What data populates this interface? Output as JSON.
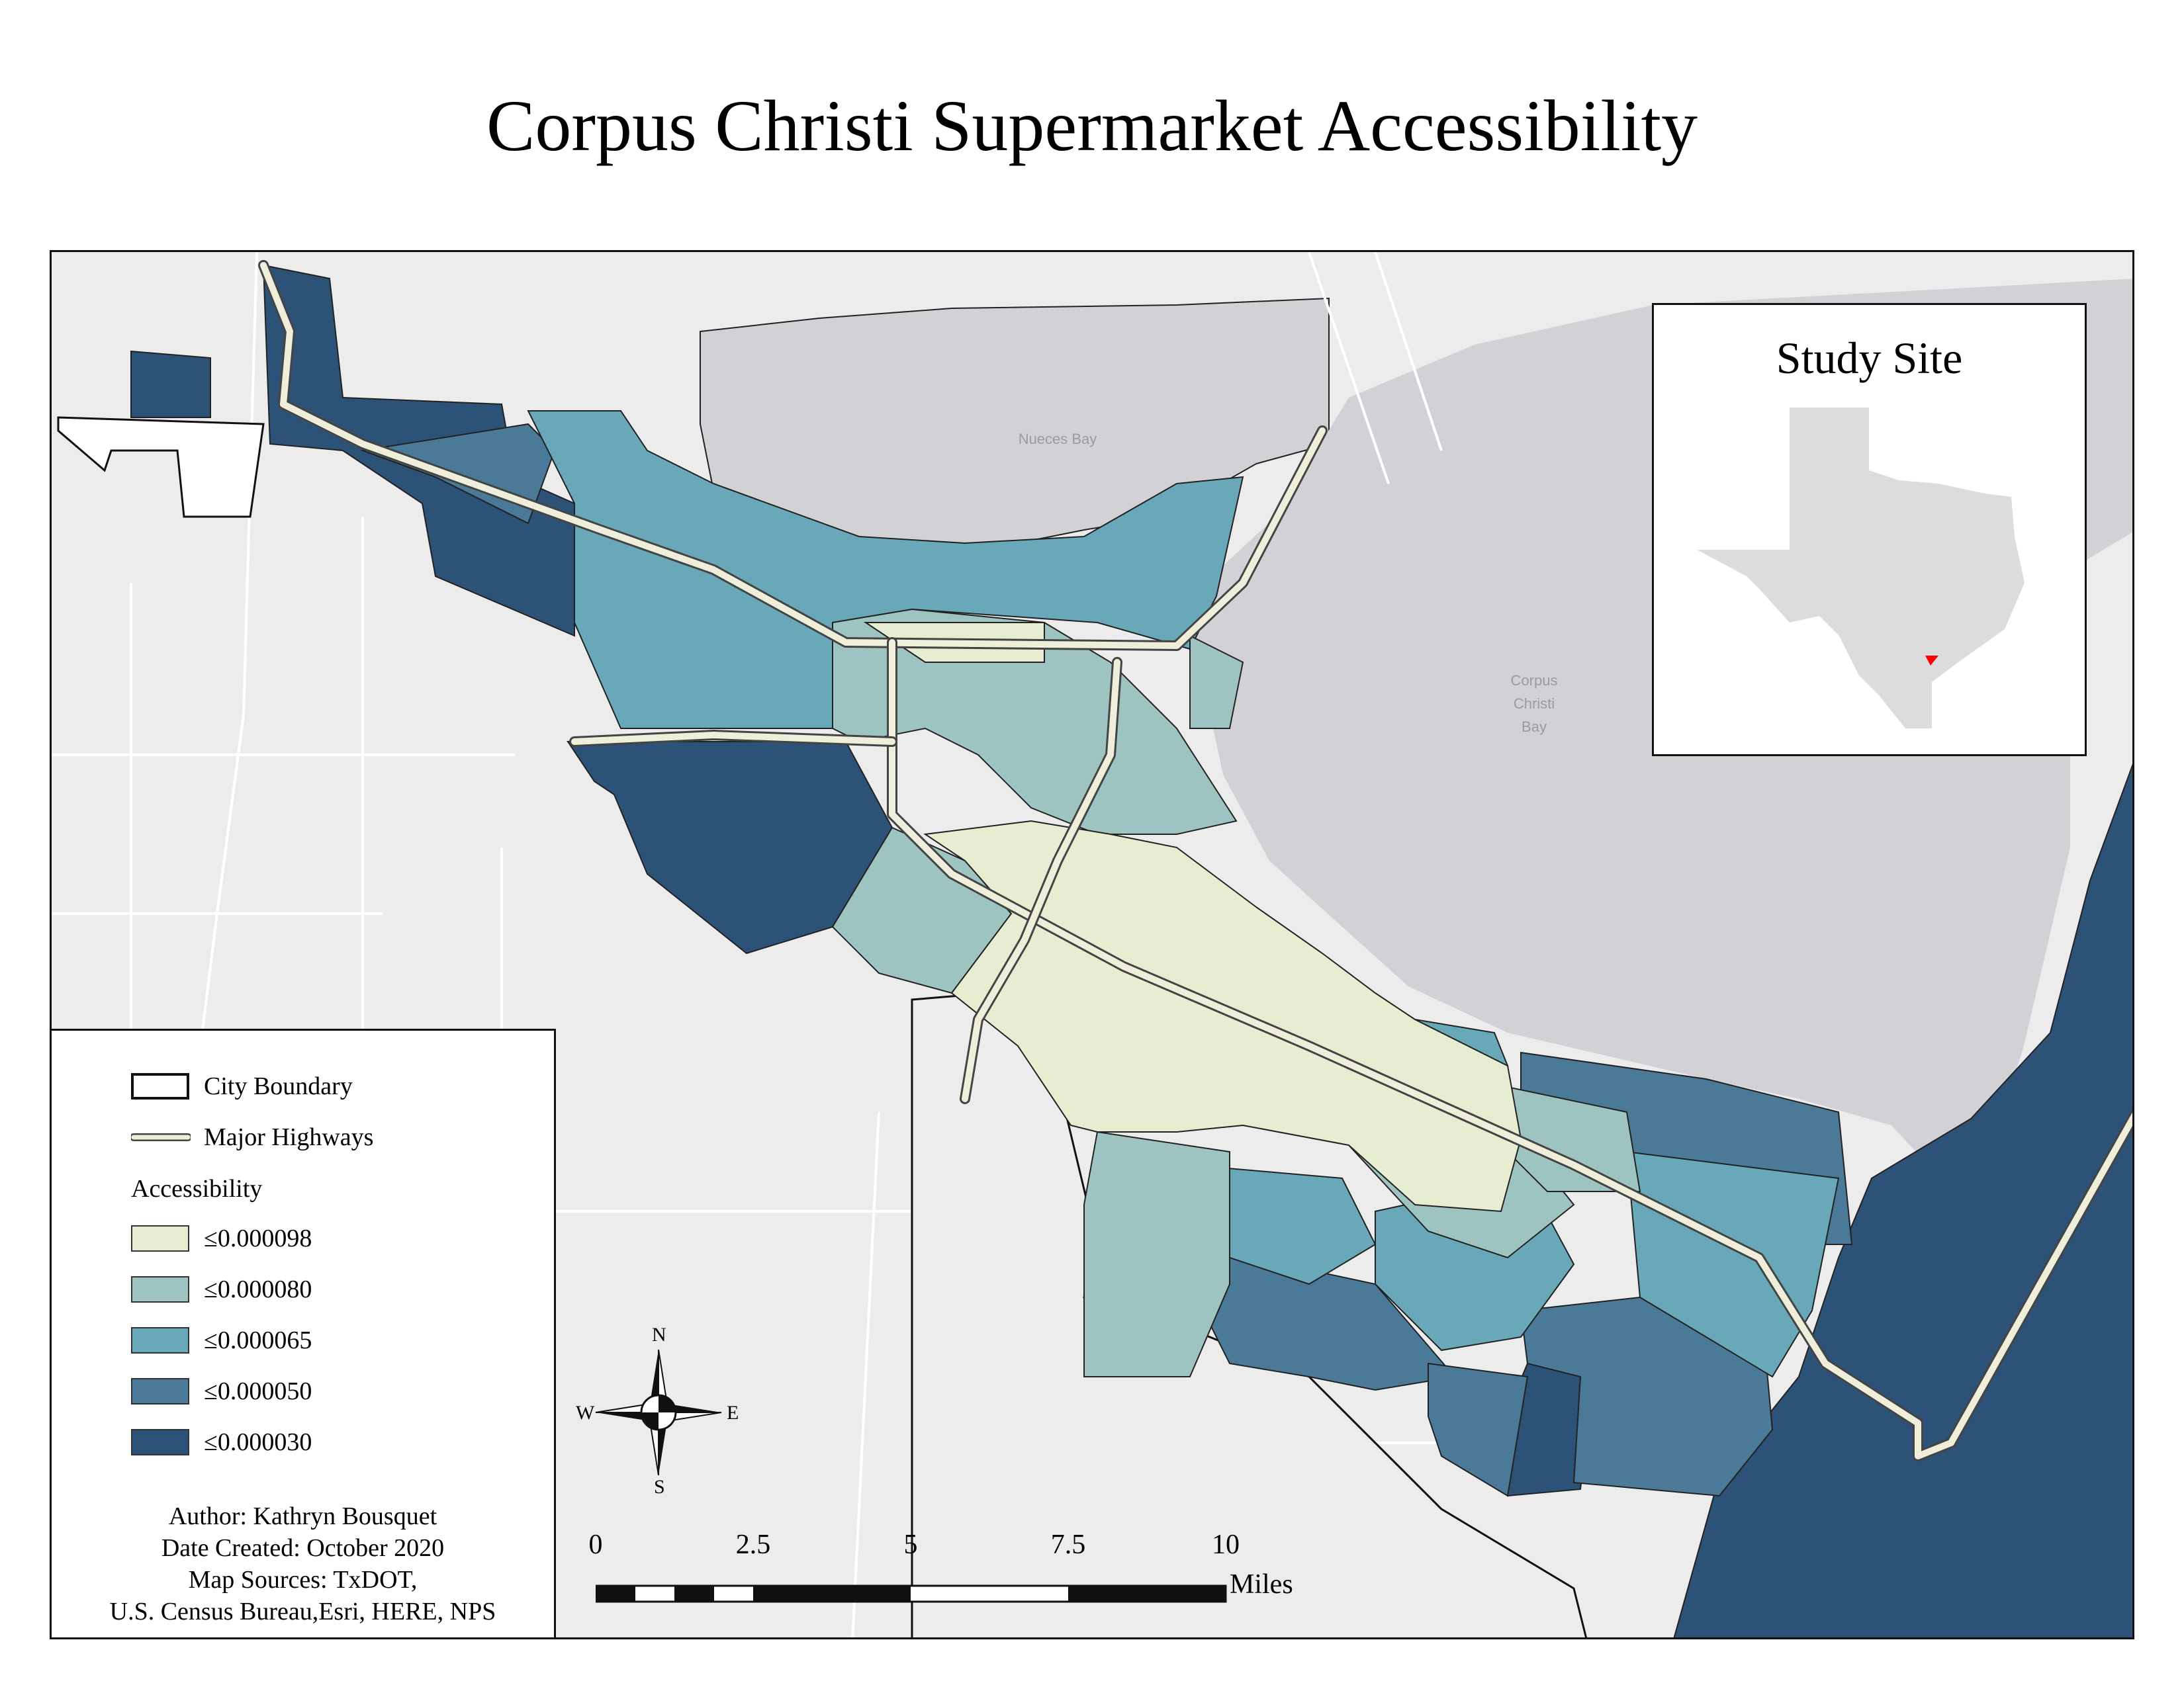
{
  "title": "Corpus Christi Supermarket Accessibility",
  "map": {
    "place_labels": {
      "nueces_bay": "Nueces Bay",
      "corpus_christi_bay": [
        "Corpus",
        "Christi",
        "Bay"
      ]
    },
    "colors": {
      "background_land": "#ececec",
      "water": "#d2d2d6",
      "roads": "#ffffff",
      "highway": "#eeeeda",
      "boundary": "#ffffff"
    }
  },
  "inset": {
    "title": "Study Site",
    "state_color": "#dcdcdc",
    "marker_color": "#ff0000"
  },
  "legend": {
    "city_boundary_label": "City Boundary",
    "highways_label": "Major Highways",
    "heading": "Accessibility",
    "classes": [
      {
        "label": "≤0.000098",
        "color": "#e6edd1"
      },
      {
        "label": "≤0.000080",
        "color": "#9ec4c2"
      },
      {
        "label": "≤0.000065",
        "color": "#68a8b8"
      },
      {
        "label": "≤0.000050",
        "color": "#4a7a98"
      },
      {
        "label": "≤0.000030",
        "color": "#2d5278"
      }
    ],
    "credits": {
      "author": "Author: Kathryn Bousquet",
      "date": "Date Created: October 2020",
      "sources_line1": "Map Sources: TxDOT,",
      "sources_line2": "U.S. Census Bureau,Esri, HERE, NPS"
    }
  },
  "compass": {
    "n": "N",
    "s": "S",
    "e": "E",
    "w": "W"
  },
  "scale_bar": {
    "ticks": [
      "0",
      "2.5",
      "5",
      "7.5",
      "10"
    ],
    "unit": "Miles"
  }
}
